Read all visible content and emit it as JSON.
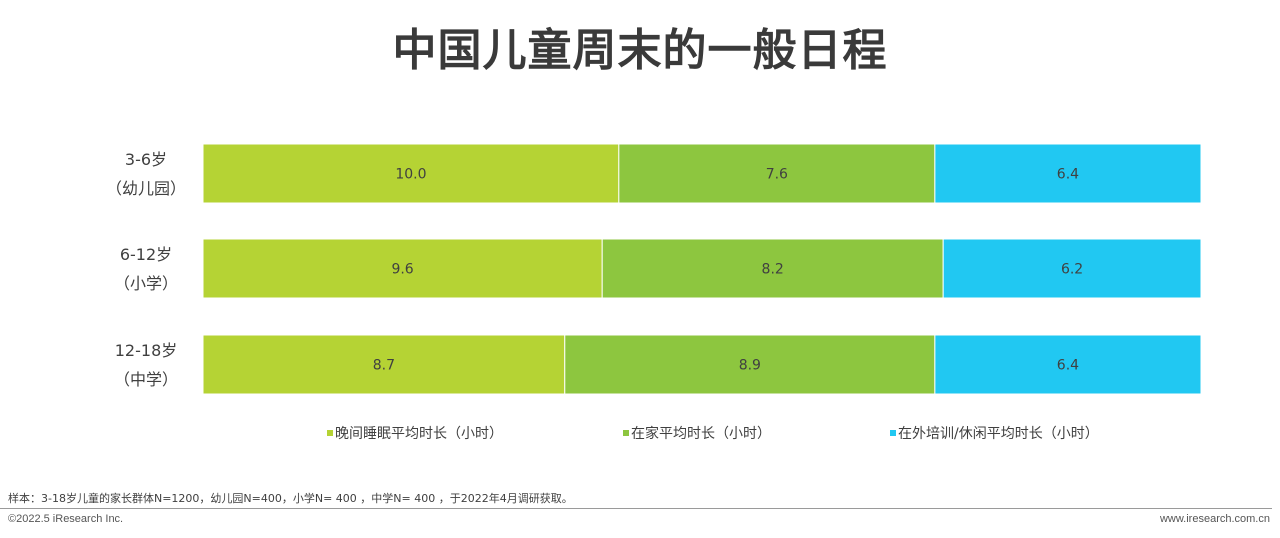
{
  "chart_data": {
    "type": "bar",
    "orientation": "horizontal",
    "stacked": true,
    "title": "中国儿童周末的一般日程",
    "categories": [
      {
        "line1": "3-6岁",
        "line2": "（幼儿园）"
      },
      {
        "line1": "6-12岁",
        "line2": "（小学）"
      },
      {
        "line1": "12-18岁",
        "line2": "（中学）"
      }
    ],
    "series": [
      {
        "name": "晚间睡眠平均时长（小时）",
        "color": "#b5d334",
        "values": [
          10.0,
          9.6,
          8.7
        ]
      },
      {
        "name": "在家平均时长（小时）",
        "color": "#8dc63f",
        "values": [
          7.6,
          8.2,
          8.9
        ]
      },
      {
        "name": "在外培训/休闲平均时长（小时）",
        "color": "#21c8f2",
        "values": [
          6.4,
          6.2,
          6.4
        ]
      }
    ],
    "legend_position": "bottom",
    "grid": false
  },
  "footer": {
    "note": "样本：3-18岁儿童的家长群体N=1200，幼儿园N=400，小学N= 400 ，中学N= 400 ，于2022年4月调研获取。",
    "copyright": "©2022.5 iResearch Inc.",
    "website": "www.iresearch.com.cn"
  }
}
